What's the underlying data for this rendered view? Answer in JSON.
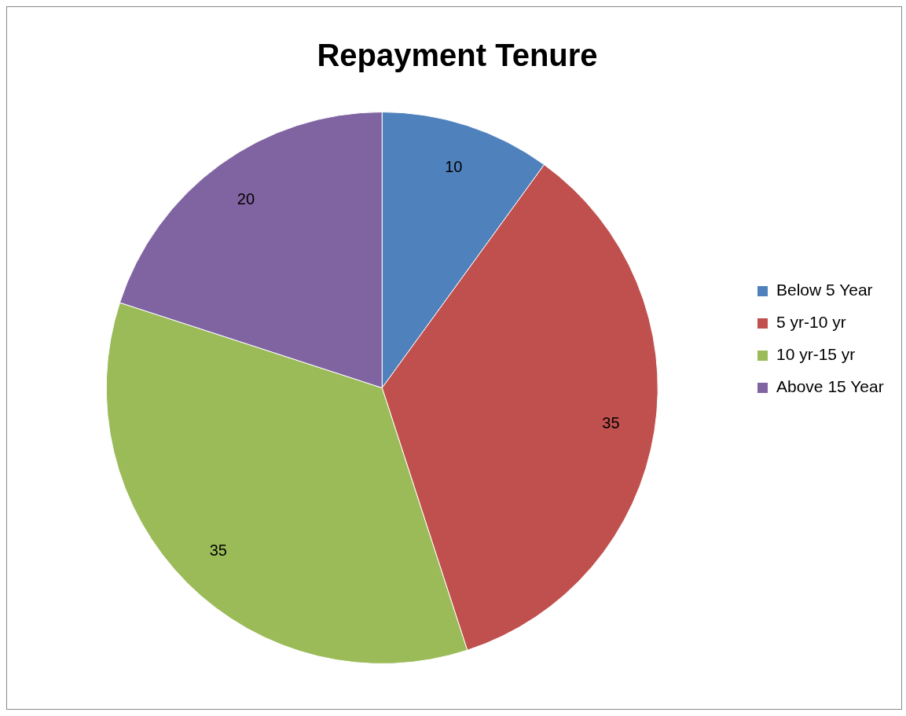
{
  "chart_data": {
    "type": "pie",
    "title": "Repayment Tenure",
    "categories": [
      "Below 5 Year",
      "5 yr-10 yr",
      "10 yr-15 yr",
      "Above 15 Year"
    ],
    "values": [
      10,
      35,
      35,
      20
    ],
    "colors": [
      "#4f81bd",
      "#c0504d",
      "#9bbb59",
      "#8064a2"
    ],
    "data_labels": true,
    "legend": "right"
  }
}
